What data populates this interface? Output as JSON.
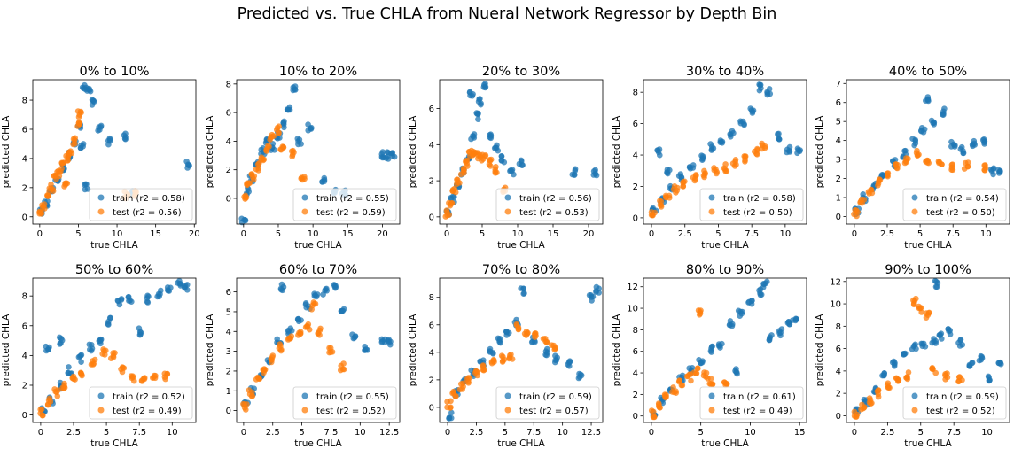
{
  "figure": {
    "title": "Predicted vs. True CHLA from Nueral Network Regressor by Depth Bin",
    "xlabel": "true CHLA",
    "ylabel": "predicted CHLA"
  },
  "colors": {
    "train": "#1f77b4",
    "test": "#ff7f0e"
  },
  "chart_data": [
    {
      "type": "scatter",
      "title": "0% to 10%",
      "xlabel": "true CHLA",
      "ylabel": "predicted CHLA",
      "xlim": [
        -0.9,
        20.2
      ],
      "ylim": [
        -0.5,
        9.4
      ],
      "xticks": [
        0,
        5,
        10,
        15,
        20
      ],
      "yticks": [
        0,
        2,
        4,
        6,
        8
      ],
      "legend": "lower right",
      "series": [
        {
          "name": "train (r2 = 0.58)",
          "r2": 0.58
        },
        {
          "name": "test (r2 = 0.56)",
          "r2": 0.56
        }
      ],
      "train": {
        "x": [
          0.2,
          0.8,
          1.5,
          2.2,
          3.0,
          3.8,
          4.5,
          5.2,
          5.8,
          6.3,
          7.0,
          7.8,
          9.0,
          11.0,
          12.0,
          19.2,
          5.5,
          6.0
        ],
        "y": [
          0.3,
          0.9,
          1.8,
          2.6,
          3.4,
          4.2,
          5.2,
          6.2,
          8.8,
          8.6,
          7.8,
          6.0,
          5.2,
          5.5,
          1.6,
          3.6,
          4.9,
          2.0
        ]
      },
      "test": {
        "x": [
          0.1,
          0.5,
          1.0,
          1.5,
          2.0,
          2.5,
          3.0,
          3.5,
          4.0,
          4.5,
          5.0,
          5.2,
          3.3,
          11.2,
          12.2
        ],
        "y": [
          0.2,
          0.8,
          1.5,
          2.0,
          2.6,
          3.0,
          3.5,
          4.0,
          4.5,
          5.2,
          6.4,
          7.0,
          2.2,
          1.5,
          1.6
        ]
      }
    },
    {
      "type": "scatter",
      "title": "10% to 20%",
      "xlabel": "true CHLA",
      "ylabel": "predicted CHLA",
      "xlim": [
        -1.0,
        22.5
      ],
      "ylim": [
        -1.8,
        8.3
      ],
      "xticks": [
        0,
        5,
        10,
        15,
        20
      ],
      "yticks": [
        0,
        2,
        4,
        6,
        8
      ],
      "legend": "lower right",
      "series": [
        {
          "name": "train (r2 = 0.55)",
          "r2": 0.55
        },
        {
          "name": "test (r2 = 0.59)",
          "r2": 0.59
        }
      ],
      "train": {
        "x": [
          0.0,
          0.5,
          1.2,
          2.0,
          2.8,
          3.5,
          4.2,
          5.0,
          5.8,
          6.5,
          7.2,
          8.0,
          9.5,
          11.5,
          13.0,
          14.5,
          20.0,
          20.8,
          21.5
        ],
        "y": [
          -1.5,
          0.5,
          1.4,
          2.5,
          3.3,
          4.0,
          3.6,
          4.4,
          5.2,
          6.2,
          7.6,
          4.0,
          5.0,
          1.2,
          0.6,
          0.4,
          3.1,
          3.0,
          3.0
        ]
      },
      "test": {
        "x": [
          0.2,
          0.7,
          1.3,
          2.0,
          2.7,
          3.4,
          4.1,
          4.8,
          5.5,
          7.0,
          8.5
        ],
        "y": [
          0.2,
          0.9,
          1.5,
          2.2,
          2.8,
          3.5,
          4.2,
          4.8,
          3.5,
          3.1,
          1.3
        ]
      }
    },
    {
      "type": "scatter",
      "title": "20% to 30%",
      "xlabel": "true CHLA",
      "ylabel": "predicted CHLA",
      "xlim": [
        -1.0,
        22.0
      ],
      "ylim": [
        -0.4,
        7.6
      ],
      "xticks": [
        0,
        5,
        10,
        15,
        20
      ],
      "yticks": [
        0,
        2,
        4,
        6
      ],
      "legend": "lower right",
      "series": [
        {
          "name": "train (r2 = 0.56)",
          "r2": 0.56
        },
        {
          "name": "test (r2 = 0.53)",
          "r2": 0.53
        }
      ],
      "train": {
        "x": [
          0.2,
          0.8,
          1.5,
          2.2,
          3.0,
          3.6,
          4.2,
          4.8,
          5.5,
          6.2,
          7.0,
          8.0,
          9.2,
          10.5,
          18.0,
          21.0,
          3.5
        ],
        "y": [
          0.3,
          1.0,
          1.8,
          2.5,
          3.3,
          4.5,
          5.6,
          6.4,
          7.3,
          4.5,
          3.8,
          3.2,
          2.5,
          3.0,
          2.5,
          2.5,
          6.8
        ]
      },
      "test": {
        "x": [
          0.1,
          0.5,
          1.0,
          1.6,
          2.2,
          2.8,
          3.4,
          4.0,
          4.6,
          5.2,
          6.0,
          6.8,
          8.0
        ],
        "y": [
          0.2,
          0.8,
          1.4,
          2.0,
          2.5,
          3.0,
          3.5,
          3.6,
          3.4,
          3.3,
          3.0,
          2.6,
          1.5
        ]
      }
    },
    {
      "type": "scatter",
      "title": "30% to 40%",
      "xlabel": "true CHLA",
      "ylabel": "predicted CHLA",
      "xlim": [
        -0.6,
        11.6
      ],
      "ylim": [
        -0.4,
        8.8
      ],
      "xticks": [
        0,
        2.5,
        5,
        7.5,
        10
      ],
      "yticks": [
        0,
        2,
        4,
        6,
        8
      ],
      "legend": "lower right",
      "series": [
        {
          "name": "train (r2 = 0.58)",
          "r2": 0.58
        },
        {
          "name": "test (r2 = 0.50)",
          "r2": 0.5
        }
      ],
      "train": {
        "x": [
          0.2,
          0.8,
          1.5,
          2.2,
          3.0,
          3.8,
          4.5,
          5.2,
          6.0,
          6.8,
          7.5,
          8.2,
          8.8,
          9.5,
          10.2,
          11.0,
          0.5,
          1.2
        ],
        "y": [
          0.4,
          1.2,
          1.8,
          2.6,
          3.2,
          3.8,
          4.5,
          4.8,
          5.4,
          6.0,
          6.8,
          8.3,
          8.0,
          5.2,
          4.3,
          4.3,
          4.2,
          3.0
        ]
      },
      "test": {
        "x": [
          0.1,
          0.6,
          1.2,
          1.8,
          2.5,
          3.2,
          4.0,
          4.8,
          5.5,
          6.2,
          7.0,
          7.8,
          8.4
        ],
        "y": [
          0.2,
          0.9,
          1.4,
          1.8,
          2.2,
          2.6,
          2.8,
          3.0,
          3.2,
          3.5,
          3.8,
          4.2,
          4.6
        ]
      }
    },
    {
      "type": "scatter",
      "title": "40% to 50%",
      "xlabel": "true CHLA",
      "ylabel": "predicted CHLA",
      "xlim": [
        -0.6,
        11.8
      ],
      "ylim": [
        -0.4,
        7.2
      ],
      "xticks": [
        0,
        2.5,
        5,
        7.5,
        10
      ],
      "yticks": [
        0,
        1,
        2,
        3,
        4,
        5,
        6,
        7
      ],
      "legend": "lower right",
      "series": [
        {
          "name": "train (r2 = 0.54)",
          "r2": 0.54
        },
        {
          "name": "test (r2 = 0.50)",
          "r2": 0.5
        }
      ],
      "train": {
        "x": [
          0.2,
          0.8,
          1.5,
          2.2,
          3.0,
          3.8,
          4.5,
          5.2,
          6.0,
          6.8,
          7.5,
          8.2,
          9.0,
          9.8,
          10.5,
          11.0,
          5.5
        ],
        "y": [
          0.3,
          1.0,
          1.6,
          2.2,
          2.8,
          3.3,
          3.9,
          4.5,
          5.0,
          5.5,
          3.8,
          3.5,
          3.9,
          4.0,
          2.4,
          2.3,
          6.2
        ]
      },
      "test": {
        "x": [
          0.1,
          0.6,
          1.2,
          1.8,
          2.5,
          3.2,
          4.0,
          4.8,
          5.5,
          6.5,
          7.5,
          8.5,
          10.0
        ],
        "y": [
          0.2,
          0.8,
          1.3,
          1.8,
          2.2,
          2.6,
          3.0,
          3.3,
          3.0,
          2.8,
          2.6,
          2.7,
          2.6
        ]
      }
    },
    {
      "type": "scatter",
      "title": "50% to 60%",
      "xlabel": "true CHLA",
      "ylabel": "predicted CHLA",
      "xlim": [
        -0.6,
        11.8
      ],
      "ylim": [
        -0.5,
        9.2
      ],
      "xticks": [
        0,
        2.5,
        5,
        7.5,
        10
      ],
      "yticks": [
        0,
        2,
        4,
        6,
        8
      ],
      "legend": "lower right",
      "series": [
        {
          "name": "train (r2 = 0.52)",
          "r2": 0.52
        },
        {
          "name": "test (r2 = 0.49)",
          "r2": 0.49
        }
      ],
      "train": {
        "x": [
          0.2,
          0.8,
          1.5,
          2.2,
          3.0,
          3.8,
          4.5,
          5.2,
          6.0,
          6.8,
          7.5,
          8.2,
          9.0,
          9.8,
          10.5,
          11.0,
          0.5,
          1.5
        ],
        "y": [
          0.3,
          1.0,
          2.0,
          3.0,
          3.8,
          4.5,
          5.0,
          6.3,
          7.6,
          7.8,
          5.6,
          7.8,
          8.2,
          8.4,
          8.8,
          8.6,
          4.5,
          5.0
        ]
      },
      "test": {
        "x": [
          0.1,
          0.6,
          1.2,
          1.8,
          2.5,
          3.2,
          4.0,
          4.8,
          5.5,
          6.2,
          7.0,
          7.8,
          8.6,
          9.5
        ],
        "y": [
          0.2,
          0.9,
          1.5,
          2.0,
          2.4,
          2.8,
          3.5,
          4.2,
          4.0,
          3.0,
          2.5,
          2.4,
          2.5,
          2.6
        ]
      }
    },
    {
      "type": "scatter",
      "title": "60% to 70%",
      "xlabel": "true CHLA",
      "ylabel": "predicted CHLA",
      "xlim": [
        -0.6,
        13.4
      ],
      "ylim": [
        -0.6,
        6.7
      ],
      "xticks": [
        0,
        2.5,
        5,
        7.5,
        10,
        12.5
      ],
      "yticks": [
        0,
        1,
        2,
        3,
        4,
        5,
        6
      ],
      "legend": "lower right",
      "series": [
        {
          "name": "train (r2 = 0.55)",
          "r2": 0.55
        },
        {
          "name": "test (r2 = 0.52)",
          "r2": 0.52
        }
      ],
      "train": {
        "x": [
          0.2,
          0.8,
          1.5,
          2.2,
          3.0,
          3.3,
          4.0,
          4.8,
          5.5,
          6.2,
          7.0,
          7.8,
          8.5,
          9.5,
          10.5,
          12.0,
          12.5
        ],
        "y": [
          0.3,
          1.0,
          1.8,
          2.5,
          3.5,
          6.2,
          4.0,
          4.5,
          5.3,
          5.8,
          6.0,
          6.3,
          5.0,
          3.8,
          3.2,
          3.6,
          3.5
        ]
      },
      "test": {
        "x": [
          0.1,
          0.6,
          1.2,
          1.8,
          2.5,
          3.2,
          4.0,
          4.8,
          5.5,
          6.0,
          6.5,
          7.5,
          8.5
        ],
        "y": [
          0.2,
          0.9,
          1.5,
          2.0,
          2.6,
          3.2,
          3.6,
          3.8,
          4.2,
          5.3,
          4.0,
          3.0,
          2.2
        ]
      }
    },
    {
      "type": "scatter",
      "title": "70% to 80%",
      "xlabel": "true CHLA",
      "ylabel": "predicted CHLA",
      "xlim": [
        -0.7,
        13.5
      ],
      "ylim": [
        -1.1,
        9.4
      ],
      "xticks": [
        0,
        2.5,
        5,
        7.5,
        10,
        12.5
      ],
      "yticks": [
        0,
        2,
        4,
        6,
        8
      ],
      "legend": "lower right",
      "series": [
        {
          "name": "train (r2 = 0.59)",
          "r2": 0.59
        },
        {
          "name": "test (r2 = 0.57)",
          "r2": 0.57
        }
      ],
      "train": {
        "x": [
          0.2,
          0.8,
          1.5,
          2.2,
          3.0,
          3.8,
          4.5,
          5.2,
          6.0,
          6.5,
          7.5,
          8.5,
          9.5,
          10.5,
          11.5,
          12.5,
          13.0
        ],
        "y": [
          -0.6,
          1.0,
          1.8,
          2.5,
          3.2,
          4.0,
          4.8,
          5.5,
          6.2,
          8.5,
          5.0,
          4.0,
          3.5,
          3.2,
          2.2,
          8.0,
          8.6
        ]
      },
      "test": {
        "x": [
          0.1,
          0.6,
          1.2,
          1.8,
          2.5,
          3.2,
          4.0,
          4.8,
          5.5,
          6.0,
          6.8,
          7.5,
          8.5,
          9.2
        ],
        "y": [
          0.2,
          0.9,
          1.5,
          2.0,
          2.4,
          2.8,
          3.2,
          3.5,
          3.6,
          5.8,
          5.5,
          5.2,
          4.8,
          4.4
        ]
      }
    },
    {
      "type": "scatter",
      "title": "80% to 90%",
      "xlabel": "true CHLA",
      "ylabel": "predicted CHLA",
      "xlim": [
        -0.8,
        15.7
      ],
      "ylim": [
        -0.6,
        12.8
      ],
      "xticks": [
        0,
        5,
        10,
        15
      ],
      "yticks": [
        0,
        2,
        4,
        6,
        8,
        10,
        12
      ],
      "legend": "lower right",
      "series": [
        {
          "name": "train (r2 = 0.61)",
          "r2": 0.61
        },
        {
          "name": "test (r2 = 0.49)",
          "r2": 0.49
        }
      ],
      "train": {
        "x": [
          0.2,
          1.0,
          2.0,
          3.0,
          4.0,
          5.0,
          6.0,
          7.0,
          8.0,
          9.0,
          10.0,
          11.0,
          11.5,
          12.0,
          13.0,
          14.0,
          14.5,
          8.5
        ],
        "y": [
          0.3,
          1.5,
          2.6,
          3.5,
          4.2,
          5.0,
          6.2,
          6.6,
          8.5,
          9.5,
          10.4,
          11.5,
          12.2,
          7.2,
          7.8,
          8.5,
          8.9,
          4.2
        ]
      },
      "test": {
        "x": [
          0.1,
          0.8,
          1.5,
          2.3,
          3.0,
          3.8,
          4.5,
          4.8,
          5.5,
          6.0,
          7.5
        ],
        "y": [
          0.2,
          1.0,
          1.8,
          2.4,
          3.0,
          3.6,
          4.2,
          9.5,
          3.8,
          3.2,
          2.8
        ]
      }
    },
    {
      "type": "scatter",
      "title": "90% to 100%",
      "xlabel": "true CHLA",
      "ylabel": "predicted CHLA",
      "xlim": [
        -0.6,
        11.7
      ],
      "ylim": [
        -0.6,
        12.3
      ],
      "xticks": [
        0,
        2.5,
        5,
        7.5,
        10
      ],
      "yticks": [
        0,
        2,
        4,
        6,
        8,
        10,
        12
      ],
      "legend": "lower right",
      "series": [
        {
          "name": "train (r2 = 0.59)",
          "r2": 0.59
        },
        {
          "name": "test (r2 = 0.52)",
          "r2": 0.52
        }
      ],
      "train": {
        "x": [
          0.2,
          0.8,
          1.5,
          2.2,
          3.0,
          3.8,
          4.5,
          5.2,
          6.0,
          6.5,
          7.2,
          8.0,
          8.8,
          9.5,
          10.2,
          11.0,
          6.2
        ],
        "y": [
          0.3,
          1.2,
          2.4,
          3.5,
          4.6,
          5.5,
          6.2,
          6.5,
          6.8,
          7.2,
          7.6,
          6.5,
          4.5,
          5.0,
          3.2,
          4.6,
          11.8
        ]
      },
      "test": {
        "x": [
          0.1,
          0.6,
          1.2,
          1.8,
          2.5,
          3.2,
          4.0,
          4.5,
          5.0,
          5.5,
          6.0,
          7.0,
          8.0
        ],
        "y": [
          0.2,
          0.8,
          1.4,
          2.0,
          2.6,
          3.2,
          3.6,
          10.2,
          9.5,
          9.0,
          4.0,
          3.5,
          3.2
        ]
      }
    }
  ]
}
